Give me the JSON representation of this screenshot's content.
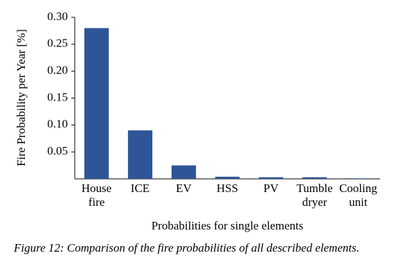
{
  "chart_data": {
    "type": "bar",
    "y_label": "Fire Probability per Year [%]",
    "x_label": "Probabilities for single elements",
    "caption": "Figure 12: Comparison of the fire probabilities of all described elements.",
    "categories": [
      "House fire",
      "ICE",
      "EV",
      "HSS",
      "PV",
      "Tumble dryer",
      "Cooling unit"
    ],
    "values": [
      0.28,
      0.09,
      0.025,
      0.004,
      0.003,
      0.003,
      0.001
    ],
    "color": "#2e5597",
    "ylim": [
      0,
      0.3
    ],
    "yticks": [
      0.05,
      {
        "value": 0.1,
        "label": "0.10"
      },
      0.15,
      {
        "value": 0.2,
        "label": "0.20"
      },
      0.25,
      {
        "value": 0.3,
        "label": "0.30"
      }
    ]
  }
}
